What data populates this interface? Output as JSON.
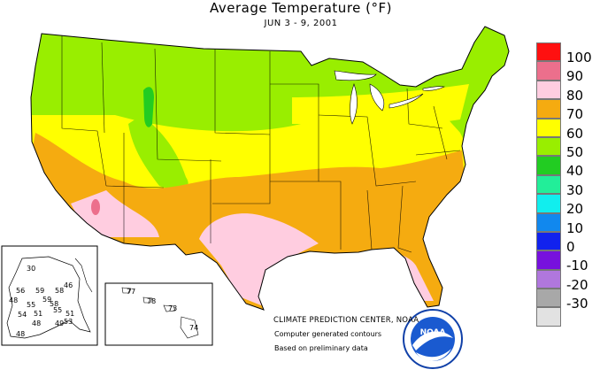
{
  "title": "Average Temperature (°F)",
  "subtitle": "JUN 3 - 9, 2001",
  "legend": {
    "items": [
      {
        "label": "100",
        "color": "#ff1010"
      },
      {
        "label": "90",
        "color": "#ec6f8c"
      },
      {
        "label": "80",
        "color": "#ffcde0"
      },
      {
        "label": "70",
        "color": "#f5ab10"
      },
      {
        "label": "60",
        "color": "#ffff00"
      },
      {
        "label": "50",
        "color": "#99ee00"
      },
      {
        "label": "40",
        "color": "#22cc22"
      },
      {
        "label": "30",
        "color": "#22ee99"
      },
      {
        "label": "20",
        "color": "#11eeee"
      },
      {
        "label": "10",
        "color": "#1188ee"
      },
      {
        "label": "0",
        "color": "#1122ee"
      },
      {
        "label": "-10",
        "color": "#7711dd"
      },
      {
        "label": "-20",
        "color": "#b077dd"
      },
      {
        "label": "-30",
        "color": "#a8a8a8"
      },
      {
        "label": "",
        "color": "#e2e2e2"
      }
    ]
  },
  "credits": {
    "center": "CLIMATE PREDICTION CENTER, NOAA",
    "line1": "Computer generated contours",
    "line2": "Based on preliminary data",
    "logo_text": "NOAA"
  },
  "alaska_labels": [
    "30",
    "56",
    "59",
    "58",
    "48",
    "55",
    "59",
    "58",
    "55",
    "54",
    "51",
    "51",
    "48",
    "49",
    "53",
    "48",
    "46"
  ],
  "hawaii_labels": [
    "77",
    "78",
    "73",
    "74"
  ]
}
